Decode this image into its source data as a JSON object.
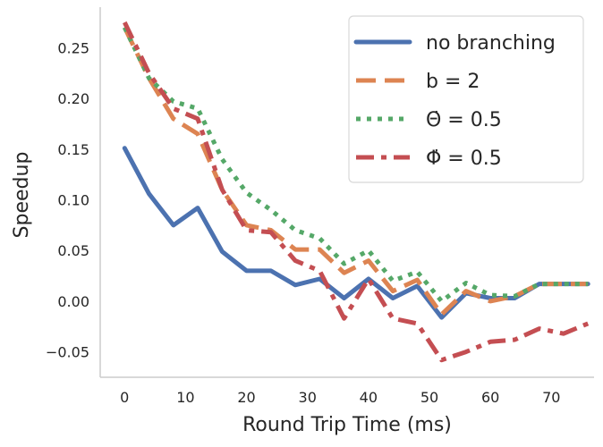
{
  "chart_data": {
    "type": "line",
    "title": "",
    "xlabel": "Round Trip Time (ms)",
    "ylabel": "Speedup",
    "xlim": [
      -4,
      77
    ],
    "ylim": [
      -0.075,
      0.29
    ],
    "xticks": [
      0,
      10,
      20,
      30,
      40,
      50,
      60,
      70
    ],
    "yticks": [
      -0.05,
      0.0,
      0.05,
      0.1,
      0.15,
      0.2,
      0.25
    ],
    "ytick_labels": [
      "−0.05",
      "0.00",
      "0.05",
      "0.10",
      "0.15",
      "0.20",
      "0.25"
    ],
    "grid": false,
    "legend_position": "top-right",
    "x": [
      0,
      4,
      8,
      12,
      16,
      20,
      24,
      28,
      32,
      36,
      40,
      44,
      48,
      52,
      56,
      60,
      64,
      68,
      72,
      76
    ],
    "series": [
      {
        "name": "no branching",
        "legend_label": "no branching",
        "color": "#4c72b0",
        "dash": "solid",
        "values": [
          0.151,
          0.106,
          0.075,
          0.092,
          0.049,
          0.03,
          0.03,
          0.016,
          0.022,
          0.003,
          0.022,
          0.003,
          0.015,
          -0.016,
          0.008,
          0.003,
          0.003,
          0.017,
          0.017,
          0.017
        ]
      },
      {
        "name": "b = 2",
        "legend_label": "b = 2",
        "color": "#dd8452",
        "dash": "dashed",
        "values": [
          0.27,
          0.22,
          0.18,
          0.165,
          0.11,
          0.075,
          0.07,
          0.051,
          0.051,
          0.028,
          0.04,
          0.01,
          0.021,
          -0.013,
          0.01,
          0.0,
          0.005,
          0.017,
          0.017,
          0.017
        ]
      },
      {
        "name": "Θ̇ = 0.5",
        "legend_label": "Θ̇ = 0.5",
        "color": "#55a868",
        "dash": "dotted",
        "values": [
          0.27,
          0.22,
          0.197,
          0.19,
          0.14,
          0.107,
          0.09,
          0.07,
          0.062,
          0.037,
          0.05,
          0.02,
          0.029,
          0.0,
          0.018,
          0.006,
          0.005,
          0.017,
          0.017,
          0.017
        ]
      },
      {
        "name": "Φ̇ = 0.5",
        "legend_label": "Φ̇ = 0.5",
        "color": "#c44e52",
        "dash": "dashdot",
        "values": [
          0.275,
          0.225,
          0.19,
          0.18,
          0.11,
          0.07,
          0.068,
          0.04,
          0.03,
          -0.017,
          0.022,
          -0.017,
          -0.022,
          -0.058,
          -0.05,
          -0.04,
          -0.038,
          -0.027,
          -0.032,
          -0.022
        ]
      }
    ]
  }
}
